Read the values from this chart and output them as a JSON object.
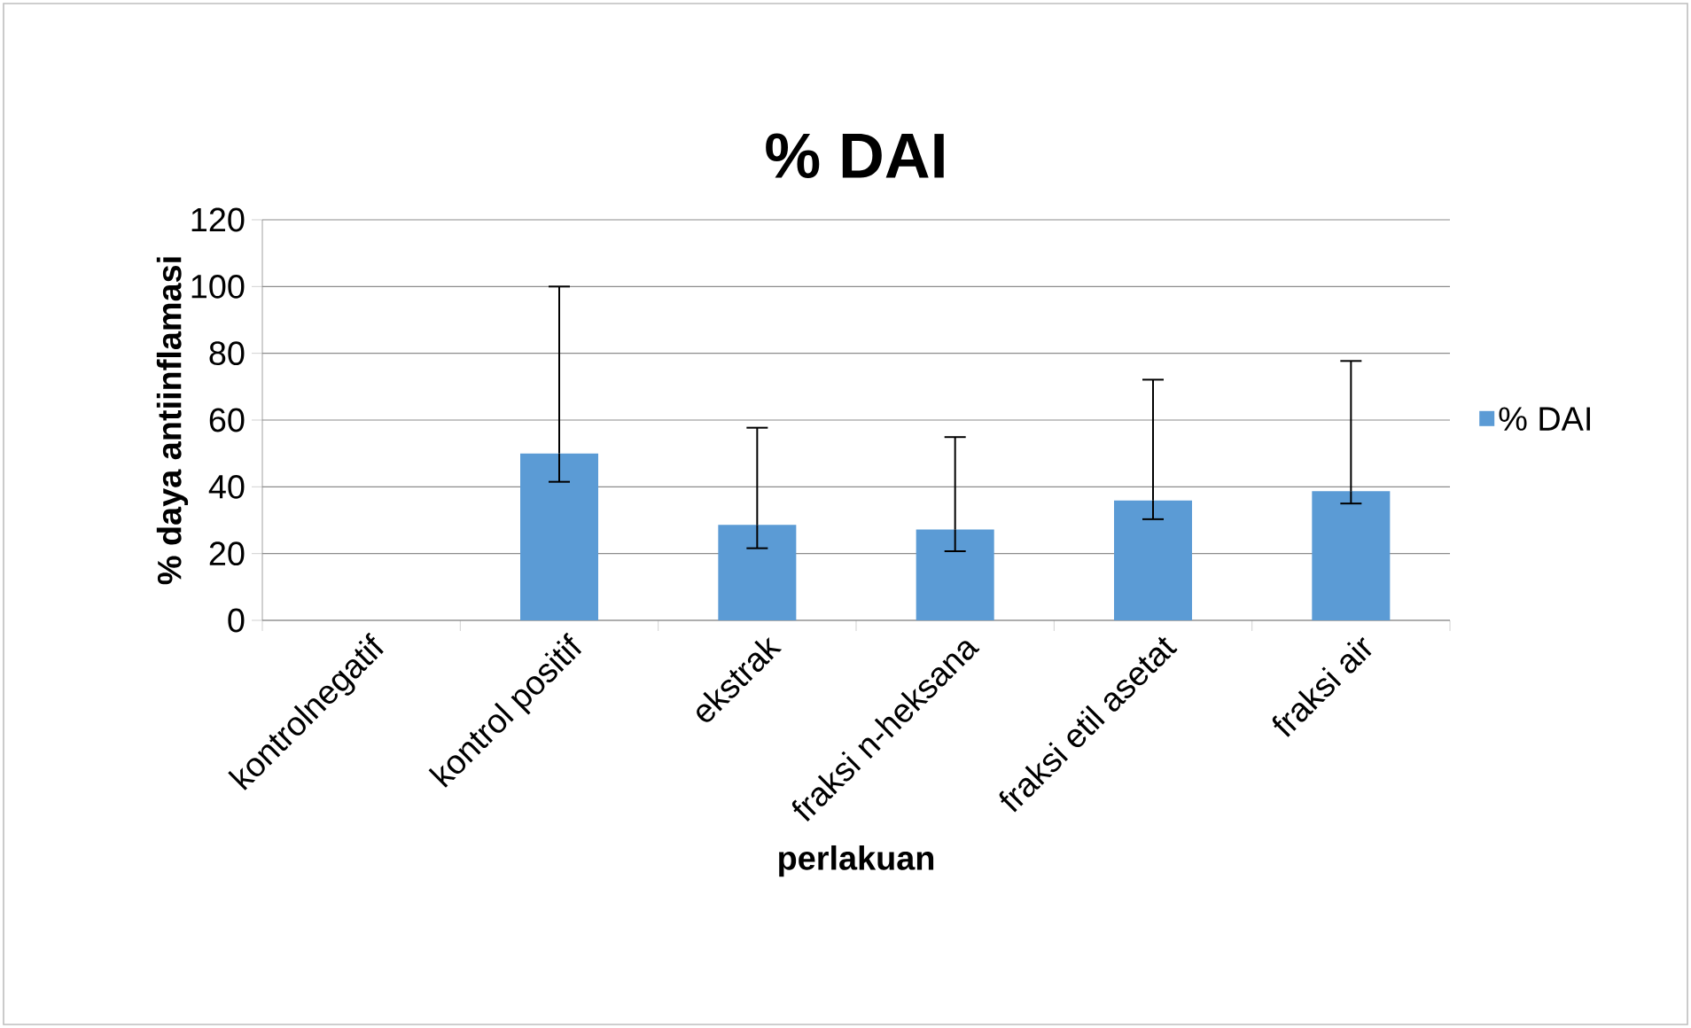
{
  "chart_data": {
    "type": "bar",
    "title": "% DAI",
    "xlabel": "perlakuan",
    "ylabel": "% daya antiinflamasi",
    "categories": [
      "kontrolnegatif",
      "kontrol positif",
      "ekstrak",
      "fraksi n-heksana",
      "fraksi etil asetat",
      "fraksi air"
    ],
    "series": [
      {
        "name": "% DAI",
        "color": "#5b9bd5",
        "values": [
          0,
          50,
          28.6,
          27.2,
          35.9,
          38.7
        ],
        "errors": [
          null,
          [
            41.5,
            100
          ],
          [
            21.6,
            57.7
          ],
          [
            20.7,
            54.9
          ],
          [
            30.3,
            72.1
          ],
          [
            35.0,
            77.7
          ]
        ]
      }
    ],
    "ylim": [
      0,
      120
    ],
    "yticks": [
      0,
      20,
      40,
      60,
      80,
      100,
      120
    ],
    "grid": "y",
    "legend": "right"
  }
}
